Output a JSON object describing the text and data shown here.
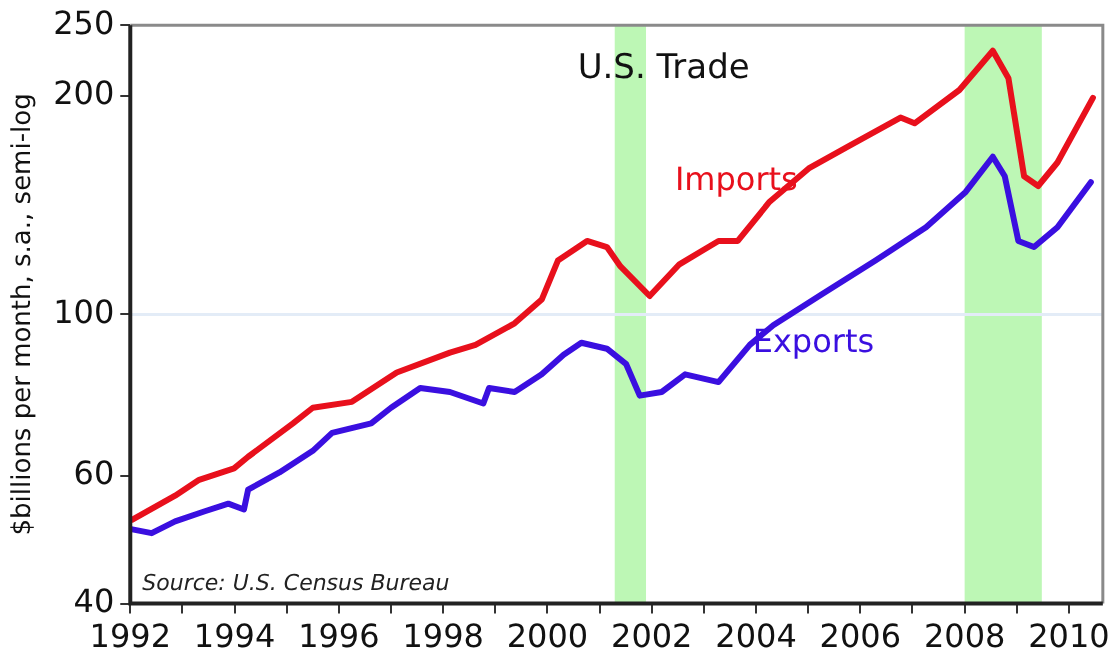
{
  "chart_data": {
    "type": "line",
    "title": "U.S. Trade",
    "ylabel": "$billions per month, s.a., semi-log",
    "annotations": [
      "Source: U.S. Census Bureau"
    ],
    "log": "y",
    "grid": false,
    "legend": false,
    "marker": "none",
    "line_style": "solid",
    "xlim": [
      1992,
      2010.65
    ],
    "xticks": [
      1992,
      {
        "value": 1993,
        "label": null
      },
      1994,
      {
        "value": 1995,
        "label": null
      },
      1996,
      {
        "value": 1997,
        "label": null
      },
      1998,
      {
        "value": 1999,
        "label": null
      },
      2000,
      {
        "value": 2001,
        "label": null
      },
      2002,
      {
        "value": 2003,
        "label": null
      },
      2004,
      {
        "value": 2005,
        "label": null
      },
      2006,
      {
        "value": 2007,
        "label": null
      },
      2008,
      {
        "value": 2009,
        "label": null
      },
      2010
    ],
    "ylim": [
      40,
      250
    ],
    "yticks": [
      40,
      60,
      100,
      200,
      250
    ],
    "ref_lines": [
      {
        "axis": "y",
        "value": 100,
        "color": "#e3ecf7"
      }
    ],
    "bands": [
      {
        "axis": "x",
        "from": 2001.29,
        "to": 2001.89,
        "color": "#bdf7b5"
      },
      {
        "axis": "x",
        "from": 2008.0,
        "to": 2009.48,
        "color": "#bdf7b5"
      }
    ],
    "series": [
      {
        "name": "Imports",
        "color": "#e8101c",
        "x": [
          1992.04,
          1992.86,
          1993.32,
          1993.99,
          1994.26,
          1995.12,
          1995.5,
          1996.25,
          1997.11,
          1998.13,
          1998.62,
          1999.37,
          1999.89,
          2000.2,
          2000.76,
          2001.14,
          2001.4,
          2001.96,
          2002.53,
          2003.28,
          2003.65,
          2004.26,
          2005.01,
          2005.76,
          2006.77,
          2007.04,
          2007.9,
          2008.54,
          2008.84,
          2009.14,
          2009.41,
          2009.78,
          2010.46
        ],
        "values": [
          52.2,
          56.3,
          59.2,
          61.4,
          63.7,
          70.8,
          74.4,
          75.8,
          83.2,
          88.6,
          90.8,
          97.2,
          104.8,
          118.6,
          126.2,
          123.8,
          116.4,
          106.0,
          117.2,
          126.2,
          126.2,
          142.9,
          158.8,
          170.1,
          186.6,
          183.2,
          203.6,
          230.6,
          211.3,
          154.9,
          150.2,
          161.8,
          198.6
        ]
      },
      {
        "name": "Exports",
        "color": "#3a0fe0",
        "x": [
          1992.04,
          1992.41,
          1992.86,
          1993.43,
          1993.88,
          1994.18,
          1994.26,
          1994.86,
          1995.5,
          1995.87,
          1996.62,
          1997.0,
          1997.56,
          1998.13,
          1998.77,
          1998.88,
          1999.37,
          1999.89,
          2000.31,
          2000.65,
          2001.14,
          2001.51,
          2001.77,
          2002.19,
          2002.64,
          2003.28,
          2003.88,
          2004.33,
          2005.27,
          2006.29,
          2007.26,
          2008.02,
          2008.54,
          2008.77,
          2009.03,
          2009.33,
          2009.78,
          2010.42
        ],
        "values": [
          50.6,
          50.0,
          51.9,
          53.6,
          54.9,
          53.9,
          57.4,
          60.6,
          64.9,
          68.7,
          70.8,
          74.4,
          79.2,
          78.2,
          75.4,
          79.2,
          78.2,
          82.7,
          88.0,
          91.4,
          89.7,
          85.4,
          77.3,
          78.2,
          82.7,
          80.7,
          90.8,
          96.6,
          106.7,
          118.6,
          131.8,
          147.4,
          164.8,
          154.9,
          126.2,
          123.8,
          131.8,
          152.0
        ]
      }
    ]
  }
}
